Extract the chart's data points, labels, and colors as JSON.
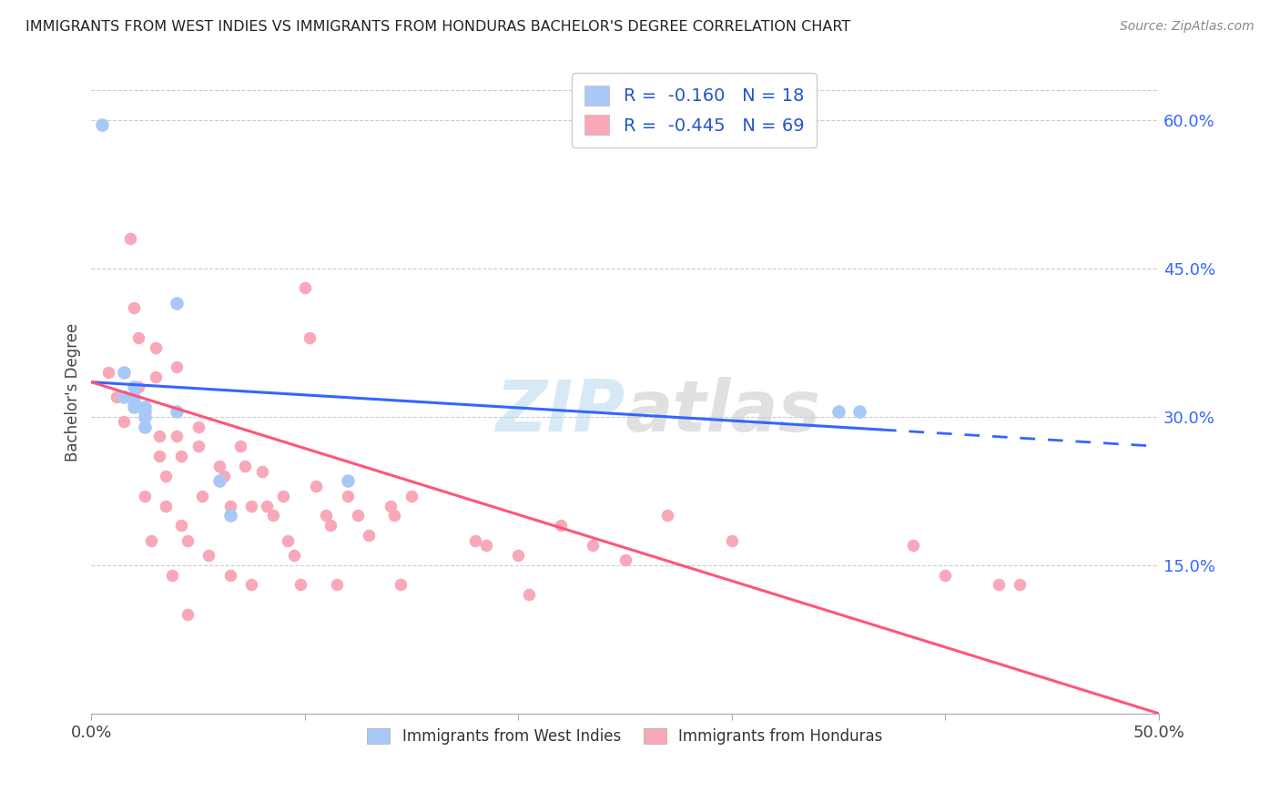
{
  "title": "IMMIGRANTS FROM WEST INDIES VS IMMIGRANTS FROM HONDURAS BACHELOR'S DEGREE CORRELATION CHART",
  "source": "Source: ZipAtlas.com",
  "ylabel": "Bachelor's Degree",
  "x_min": 0.0,
  "x_max": 0.5,
  "y_min": 0.0,
  "y_max": 0.65,
  "x_ticks": [
    0.0,
    0.1,
    0.2,
    0.3,
    0.4,
    0.5
  ],
  "x_tick_labels": [
    "0.0%",
    "",
    "",
    "",
    "",
    "50.0%"
  ],
  "y_ticks_right": [
    0.15,
    0.3,
    0.45,
    0.6
  ],
  "y_tick_labels_right": [
    "15.0%",
    "30.0%",
    "45.0%",
    "60.0%"
  ],
  "color_west_indies": "#a8c8f8",
  "color_honduras": "#f8a8b8",
  "line_color_west_indies": "#3366ff",
  "line_color_honduras": "#ff5577",
  "R_west_indies": -0.16,
  "N_west_indies": 18,
  "R_honduras": -0.445,
  "N_honduras": 69,
  "watermark_zip": "ZIP",
  "watermark_atlas": "atlas",
  "wi_line_x_solid_start": 0.0,
  "wi_line_x_solid_end": 0.37,
  "wi_line_x_dash_start": 0.37,
  "wi_line_x_dash_end": 0.5,
  "wi_line_y_start": 0.335,
  "wi_line_y_end": 0.27,
  "hon_line_x_start": 0.0,
  "hon_line_x_end": 0.5,
  "hon_line_y_start": 0.335,
  "hon_line_y_end": 0.0,
  "west_indies_x": [
    0.005,
    0.015,
    0.015,
    0.02,
    0.02,
    0.02,
    0.02,
    0.025,
    0.025,
    0.025,
    0.025,
    0.04,
    0.04,
    0.06,
    0.065,
    0.35,
    0.36,
    0.12
  ],
  "west_indies_y": [
    0.595,
    0.345,
    0.32,
    0.315,
    0.32,
    0.33,
    0.31,
    0.305,
    0.31,
    0.3,
    0.29,
    0.415,
    0.305,
    0.235,
    0.2,
    0.305,
    0.305,
    0.235
  ],
  "honduras_x": [
    0.008,
    0.012,
    0.015,
    0.018,
    0.02,
    0.022,
    0.022,
    0.025,
    0.025,
    0.025,
    0.028,
    0.03,
    0.03,
    0.032,
    0.032,
    0.035,
    0.035,
    0.038,
    0.04,
    0.04,
    0.042,
    0.042,
    0.045,
    0.045,
    0.05,
    0.05,
    0.052,
    0.055,
    0.06,
    0.062,
    0.065,
    0.065,
    0.07,
    0.072,
    0.075,
    0.075,
    0.08,
    0.082,
    0.085,
    0.09,
    0.092,
    0.095,
    0.098,
    0.1,
    0.102,
    0.105,
    0.11,
    0.112,
    0.115,
    0.12,
    0.125,
    0.13,
    0.14,
    0.142,
    0.145,
    0.15,
    0.18,
    0.185,
    0.2,
    0.205,
    0.22,
    0.235,
    0.25,
    0.27,
    0.3,
    0.385,
    0.4,
    0.425,
    0.435
  ],
  "honduras_y": [
    0.345,
    0.32,
    0.295,
    0.48,
    0.41,
    0.38,
    0.33,
    0.3,
    0.29,
    0.22,
    0.175,
    0.37,
    0.34,
    0.28,
    0.26,
    0.24,
    0.21,
    0.14,
    0.35,
    0.28,
    0.26,
    0.19,
    0.175,
    0.1,
    0.29,
    0.27,
    0.22,
    0.16,
    0.25,
    0.24,
    0.21,
    0.14,
    0.27,
    0.25,
    0.21,
    0.13,
    0.245,
    0.21,
    0.2,
    0.22,
    0.175,
    0.16,
    0.13,
    0.43,
    0.38,
    0.23,
    0.2,
    0.19,
    0.13,
    0.22,
    0.2,
    0.18,
    0.21,
    0.2,
    0.13,
    0.22,
    0.175,
    0.17,
    0.16,
    0.12,
    0.19,
    0.17,
    0.155,
    0.2,
    0.175,
    0.17,
    0.14,
    0.13,
    0.13
  ]
}
